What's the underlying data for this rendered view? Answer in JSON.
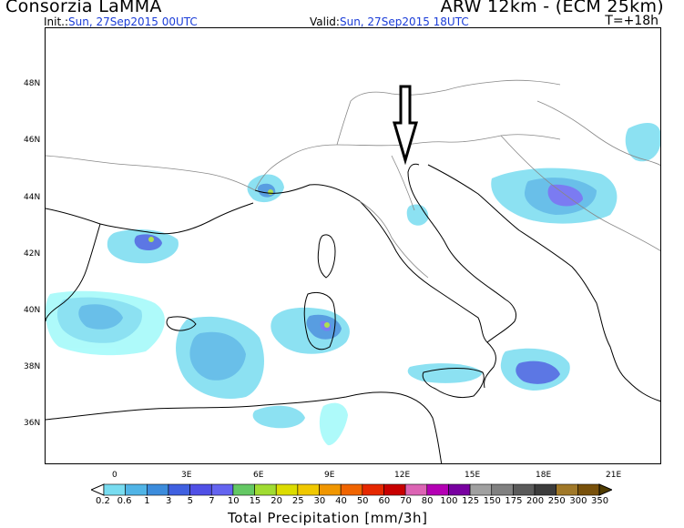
{
  "header": {
    "org": "Consorzia LaMMA",
    "model": "ARW 12km - (ECM 25km)",
    "init_label": "Init.:",
    "init_value": "Sun, 27Sep2015 00UTC",
    "valid_label": "Valid:",
    "valid_value": "Sun, 27Sep2015 18UTC",
    "forecast_step": "T=+18h"
  },
  "axes": {
    "lat_labels": [
      "48N",
      "46N",
      "44N",
      "42N",
      "40N",
      "38N",
      "36N"
    ],
    "lon_labels": [
      "0",
      "3E",
      "6E",
      "9E",
      "12E",
      "15E",
      "18E",
      "21E"
    ]
  },
  "legend": {
    "title": "Total Precipitation [mm/3h]",
    "levels": [
      "0.2",
      "0.6",
      "1",
      "3",
      "5",
      "7",
      "10",
      "15",
      "20",
      "25",
      "30",
      "40",
      "50",
      "60",
      "70",
      "80",
      "100",
      "125",
      "150",
      "175",
      "200",
      "250",
      "300",
      "350"
    ],
    "colors": [
      "#a0fafa",
      "#78dcf0",
      "#50b4e6",
      "#3c8cdc",
      "#4060e0",
      "#5050e6",
      "#6464f0",
      "#64c864",
      "#a0dc32",
      "#dcdc00",
      "#f0c800",
      "#f09600",
      "#f06400",
      "#e62800",
      "#c80000",
      "#dc64b4",
      "#b400b4",
      "#7800a0",
      "#a0a0a0",
      "#808080",
      "#5a5a5a",
      "#3c3c3c",
      "#a07828",
      "#78500a",
      "#503c00"
    ]
  },
  "annotation": {
    "arrow": "down-arrow-pointing-to-rimini"
  }
}
